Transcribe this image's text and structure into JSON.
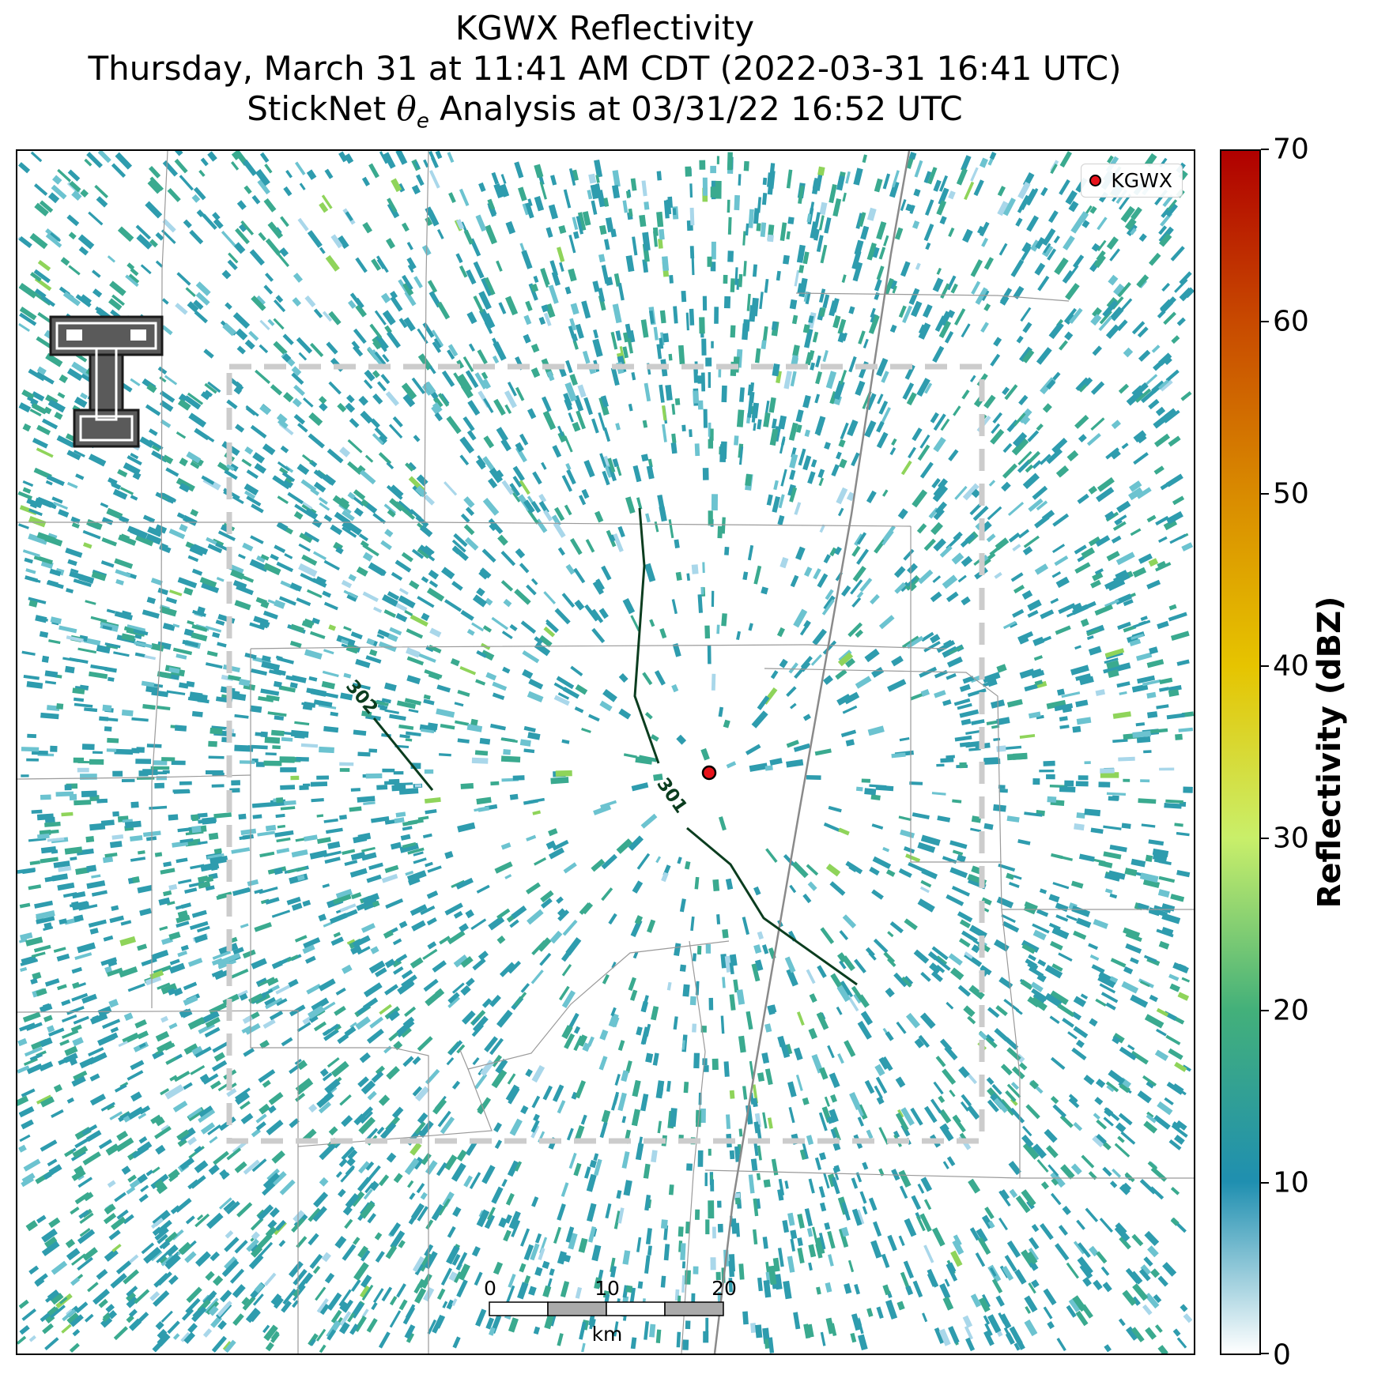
{
  "title": {
    "line1": "KGWX Reflectivity",
    "line2": "Thursday, March 31 at 11:41 AM CDT (2022-03-31 16:41 UTC)",
    "line3_prefix": "StickNet ",
    "line3_symbol": "θ",
    "line3_subscript": "e",
    "line3_suffix": " Analysis at 03/31/22 16:52 UTC"
  },
  "legend": {
    "label": "KGWX",
    "marker_color": "#e8121b"
  },
  "contours": [
    {
      "label": "301",
      "color": "#0b3d1f"
    },
    {
      "label": "302",
      "color": "#0b3d1f"
    }
  ],
  "scale_bar": {
    "labels": [
      "0",
      "10",
      "20"
    ],
    "unit": "km"
  },
  "colorbar": {
    "label": "Reflectivity (dBZ)",
    "ticks": [
      "0",
      "10",
      "20",
      "30",
      "40",
      "50",
      "60",
      "70"
    ],
    "min": 0,
    "max": 70,
    "colors": [
      "#ffffff",
      "#1f8fb0",
      "#43b07a",
      "#c9ef6a",
      "#e6c400",
      "#d98b00",
      "#c84a00",
      "#b00000"
    ]
  },
  "logo": {
    "icon": "texas-tech-double-t-logo"
  },
  "colors": {
    "echo_low": "#2e9cae",
    "echo_mid": "#3aaa8f",
    "echo_high": "#8fd45a",
    "county_lines": "#9a9a9a",
    "highway": "#8a8a8a",
    "domain_box": "#cccccc"
  }
}
